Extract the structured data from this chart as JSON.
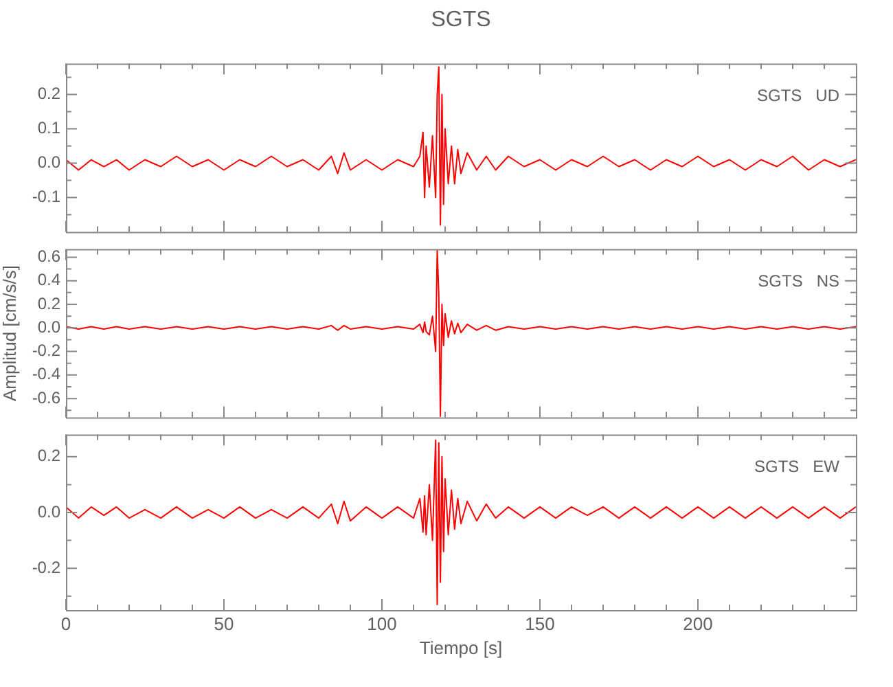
{
  "chart_data": [
    {
      "type": "line",
      "title": "SGTS",
      "annotations": [
        "SGTS   UD"
      ],
      "x": [
        0,
        4,
        8,
        12,
        16,
        20,
        25,
        30,
        35,
        40,
        45,
        50,
        55,
        60,
        65,
        70,
        75,
        80,
        84,
        86,
        88,
        90,
        95,
        100,
        105,
        110,
        112,
        113,
        113.5,
        114,
        115,
        116,
        117,
        117.5,
        118,
        118.5,
        119,
        119.5,
        120,
        121,
        122,
        123,
        124,
        125,
        127,
        130,
        133,
        136,
        140,
        145,
        150,
        155,
        160,
        165,
        170,
        175,
        180,
        185,
        190,
        195,
        200,
        205,
        210,
        215,
        220,
        225,
        230,
        235,
        240,
        245,
        250
      ],
      "series": [
        {
          "color": "#ff0000",
          "values": [
            0.01,
            -0.02,
            0.01,
            -0.01,
            0.01,
            -0.02,
            0.01,
            -0.01,
            0.02,
            -0.01,
            0.01,
            -0.02,
            0.01,
            -0.01,
            0.02,
            -0.01,
            0.01,
            -0.02,
            0.02,
            -0.03,
            0.03,
            -0.02,
            0.01,
            -0.02,
            0.01,
            -0.01,
            0.02,
            0.09,
            -0.1,
            0.05,
            -0.07,
            0.08,
            -0.1,
            0.2,
            0.28,
            -0.18,
            0.2,
            -0.12,
            0.1,
            -0.06,
            0.05,
            -0.06,
            0.04,
            -0.03,
            0.03,
            -0.02,
            0.02,
            -0.02,
            0.02,
            -0.01,
            0.01,
            -0.02,
            0.01,
            -0.01,
            0.02,
            -0.01,
            0.01,
            -0.02,
            0.01,
            -0.01,
            0.02,
            -0.01,
            0.01,
            -0.02,
            0.01,
            -0.01,
            0.02,
            -0.02,
            0.01,
            -0.01,
            0.01
          ]
        }
      ],
      "xlim": [
        0,
        250
      ],
      "xticks": [
        0,
        {
          "value": 10,
          "label": null
        },
        {
          "value": 20,
          "label": null
        },
        {
          "value": 30,
          "label": null
        },
        {
          "value": 40,
          "label": null
        },
        50,
        {
          "value": 60,
          "label": null
        },
        {
          "value": 70,
          "label": null
        },
        {
          "value": 80,
          "label": null
        },
        {
          "value": 90,
          "label": null
        },
        100,
        {
          "value": 110,
          "label": null
        },
        {
          "value": 120,
          "label": null
        },
        {
          "value": 130,
          "label": null
        },
        {
          "value": 140,
          "label": null
        },
        150,
        {
          "value": 160,
          "label": null
        },
        {
          "value": 170,
          "label": null
        },
        {
          "value": 180,
          "label": null
        },
        {
          "value": 190,
          "label": null
        },
        200,
        {
          "value": 210,
          "label": null
        },
        {
          "value": 220,
          "label": null
        },
        {
          "value": 230,
          "label": null
        },
        {
          "value": 240,
          "label": null
        }
      ],
      "ylim": [
        -0.2,
        0.29
      ],
      "yticks": [
        {
          "value": -0.15,
          "label": null
        },
        -0.1,
        {
          "value": -0.05,
          "label": null
        },
        {
          "value": 0,
          "label": "0.0"
        },
        {
          "value": 0.05,
          "label": null
        },
        0.1,
        {
          "value": 0.15,
          "label": null
        },
        0.2,
        {
          "value": 0.25,
          "label": null
        }
      ],
      "tick_labels": "y",
      "grid": false,
      "legend": false,
      "marker": "none",
      "line_style": "solid"
    },
    {
      "type": "line",
      "ylabel": "Amplitud [cm/s/s]",
      "annotations": [
        "SGTS   NS"
      ],
      "x": [
        0,
        4,
        8,
        12,
        16,
        20,
        25,
        30,
        35,
        40,
        45,
        50,
        55,
        60,
        65,
        70,
        75,
        80,
        84,
        86,
        88,
        90,
        95,
        100,
        105,
        110,
        112,
        113,
        113.5,
        114,
        115,
        116,
        117,
        117.5,
        118,
        118.5,
        119,
        119.5,
        120,
        121,
        122,
        123,
        124,
        125,
        127,
        130,
        133,
        136,
        140,
        145,
        150,
        155,
        160,
        165,
        170,
        175,
        180,
        185,
        190,
        195,
        200,
        205,
        210,
        215,
        220,
        225,
        230,
        235,
        240,
        245,
        250
      ],
      "series": [
        {
          "color": "#ff0000",
          "values": [
            0.01,
            -0.01,
            0.01,
            -0.01,
            0.01,
            -0.01,
            0.01,
            -0.01,
            0.01,
            -0.01,
            0.01,
            -0.01,
            0.01,
            -0.01,
            0.01,
            -0.01,
            0.01,
            -0.01,
            0.02,
            -0.02,
            0.02,
            -0.01,
            0.01,
            -0.01,
            0.01,
            -0.01,
            0.03,
            -0.04,
            0.05,
            -0.03,
            -0.06,
            0.1,
            -0.2,
            0.66,
            0.28,
            -0.75,
            0.2,
            -0.15,
            0.12,
            -0.08,
            0.06,
            -0.05,
            0.04,
            -0.04,
            0.03,
            -0.02,
            0.02,
            -0.02,
            0.01,
            -0.01,
            0.01,
            -0.01,
            0.01,
            -0.01,
            0.01,
            -0.01,
            0.01,
            -0.01,
            0.01,
            -0.01,
            0.01,
            -0.01,
            0.01,
            -0.01,
            0.01,
            -0.01,
            0.01,
            -0.01,
            0.01,
            -0.01,
            0.01
          ]
        }
      ],
      "xlim": [
        0,
        250
      ],
      "xticks": [
        0,
        {
          "value": 10,
          "label": null
        },
        {
          "value": 20,
          "label": null
        },
        {
          "value": 30,
          "label": null
        },
        {
          "value": 40,
          "label": null
        },
        50,
        {
          "value": 60,
          "label": null
        },
        {
          "value": 70,
          "label": null
        },
        {
          "value": 80,
          "label": null
        },
        {
          "value": 90,
          "label": null
        },
        100,
        {
          "value": 110,
          "label": null
        },
        {
          "value": 120,
          "label": null
        },
        {
          "value": 130,
          "label": null
        },
        {
          "value": 140,
          "label": null
        },
        150,
        {
          "value": 160,
          "label": null
        },
        {
          "value": 170,
          "label": null
        },
        {
          "value": 180,
          "label": null
        },
        {
          "value": 190,
          "label": null
        },
        200,
        {
          "value": 210,
          "label": null
        },
        {
          "value": 220,
          "label": null
        },
        {
          "value": 230,
          "label": null
        },
        {
          "value": 240,
          "label": null
        }
      ],
      "ylim": [
        -0.76,
        0.67
      ],
      "yticks": [
        {
          "value": -0.7,
          "label": null
        },
        -0.6,
        {
          "value": -0.5,
          "label": null
        },
        -0.4,
        {
          "value": -0.3,
          "label": null
        },
        -0.2,
        {
          "value": -0.1,
          "label": null
        },
        {
          "value": 0,
          "label": "0.0"
        },
        {
          "value": 0.1,
          "label": null
        },
        0.2,
        {
          "value": 0.3,
          "label": null
        },
        0.4,
        {
          "value": 0.5,
          "label": null
        },
        0.6
      ],
      "tick_labels": "y",
      "grid": false,
      "legend": false,
      "marker": "none",
      "line_style": "solid"
    },
    {
      "type": "line",
      "xlabel": "Tiempo [s]",
      "annotations": [
        "SGTS   EW"
      ],
      "x": [
        0,
        4,
        8,
        12,
        16,
        20,
        25,
        30,
        35,
        40,
        45,
        50,
        55,
        60,
        65,
        70,
        75,
        80,
        84,
        86,
        88,
        90,
        95,
        100,
        105,
        110,
        112,
        113,
        113.5,
        114,
        115,
        116,
        117,
        117.5,
        118,
        118.5,
        119,
        119.5,
        120,
        121,
        122,
        123,
        124,
        125,
        127,
        130,
        133,
        136,
        140,
        145,
        150,
        155,
        160,
        165,
        170,
        175,
        180,
        185,
        190,
        195,
        200,
        205,
        210,
        215,
        220,
        225,
        230,
        235,
        240,
        245,
        250
      ],
      "series": [
        {
          "color": "#ff0000",
          "values": [
            0.02,
            -0.02,
            0.02,
            -0.01,
            0.02,
            -0.02,
            0.01,
            -0.02,
            0.02,
            -0.02,
            0.01,
            -0.02,
            0.02,
            -0.02,
            0.01,
            -0.02,
            0.02,
            -0.02,
            0.03,
            -0.04,
            0.04,
            -0.03,
            0.02,
            -0.02,
            0.02,
            -0.02,
            0.05,
            -0.07,
            0.06,
            -0.08,
            0.1,
            -0.1,
            0.26,
            -0.33,
            0.25,
            -0.25,
            0.2,
            -0.14,
            0.12,
            -0.08,
            0.08,
            -0.06,
            0.05,
            -0.04,
            0.04,
            -0.03,
            0.03,
            -0.02,
            0.02,
            -0.02,
            0.02,
            -0.02,
            0.02,
            -0.01,
            0.02,
            -0.02,
            0.02,
            -0.02,
            0.02,
            -0.02,
            0.02,
            -0.02,
            0.02,
            -0.02,
            0.02,
            -0.02,
            0.02,
            -0.02,
            0.02,
            -0.02,
            0.02
          ]
        }
      ],
      "xlim": [
        0,
        250
      ],
      "xticks": [
        0,
        {
          "value": 10,
          "label": null
        },
        {
          "value": 20,
          "label": null
        },
        {
          "value": 30,
          "label": null
        },
        {
          "value": 40,
          "label": null
        },
        50,
        {
          "value": 60,
          "label": null
        },
        {
          "value": 70,
          "label": null
        },
        {
          "value": 80,
          "label": null
        },
        {
          "value": 90,
          "label": null
        },
        100,
        {
          "value": 110,
          "label": null
        },
        {
          "value": 120,
          "label": null
        },
        {
          "value": 130,
          "label": null
        },
        {
          "value": 140,
          "label": null
        },
        150,
        {
          "value": 160,
          "label": null
        },
        {
          "value": 170,
          "label": null
        },
        {
          "value": 180,
          "label": null
        },
        {
          "value": 190,
          "label": null
        },
        200,
        {
          "value": 210,
          "label": null
        },
        {
          "value": 220,
          "label": null
        },
        {
          "value": 230,
          "label": null
        },
        {
          "value": 240,
          "label": null
        }
      ],
      "ylim": [
        -0.35,
        0.28
      ],
      "yticks": [
        {
          "value": -0.3,
          "label": null
        },
        -0.2,
        {
          "value": -0.1,
          "label": null
        },
        {
          "value": 0,
          "label": "0.0"
        },
        {
          "value": 0.1,
          "label": null
        },
        0.2
      ],
      "grid": false,
      "legend": false,
      "marker": "none",
      "line_style": "solid"
    }
  ]
}
